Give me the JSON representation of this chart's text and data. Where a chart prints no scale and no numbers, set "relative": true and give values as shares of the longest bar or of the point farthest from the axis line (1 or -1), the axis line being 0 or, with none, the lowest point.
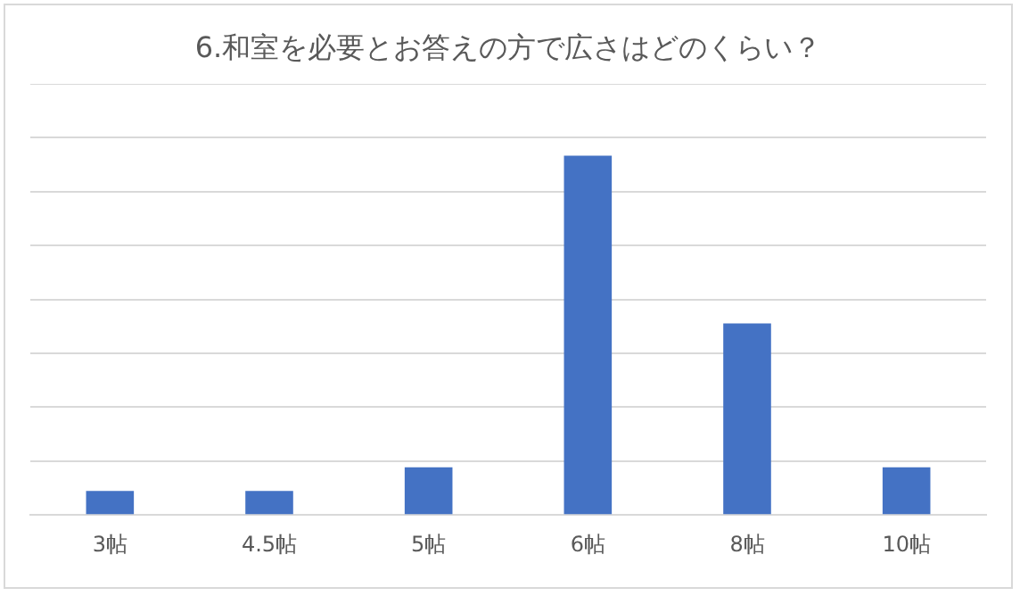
{
  "chart_data": {
    "type": "bar",
    "title": "6.和室を必要とお答えの方で広さはどのくらい？",
    "categories": [
      "3帖",
      "4.5帖",
      "5帖",
      "6帖",
      "8帖",
      "10帖"
    ],
    "values": [
      0.0667,
      0.0667,
      0.133,
      1,
      0.533,
      0.133
    ],
    "color": "#4472c4",
    "relative": true,
    "grid": "y"
  }
}
